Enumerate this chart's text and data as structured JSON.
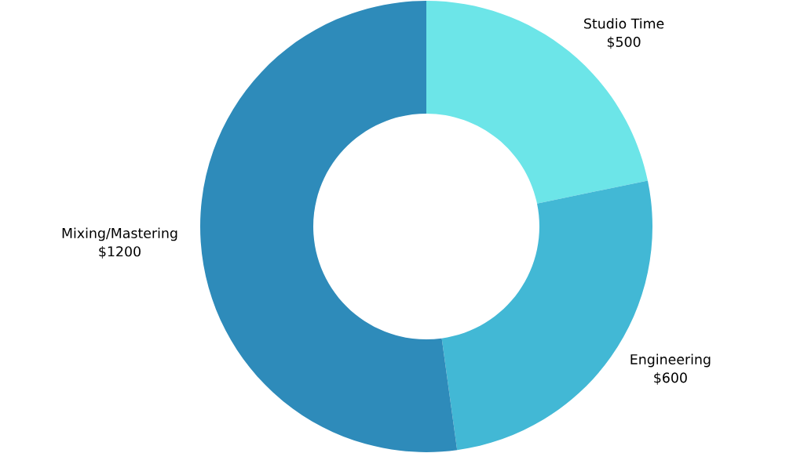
{
  "chart_data": {
    "type": "donut",
    "categories": [
      "Studio Time",
      "Engineering",
      "Mixing/Mastering"
    ],
    "values": [
      500,
      600,
      1200
    ],
    "value_labels": [
      "$500",
      "$600",
      "$1200"
    ],
    "colors": [
      "#6ce5e8",
      "#42b8d5",
      "#2e8bba"
    ],
    "legend": false
  }
}
